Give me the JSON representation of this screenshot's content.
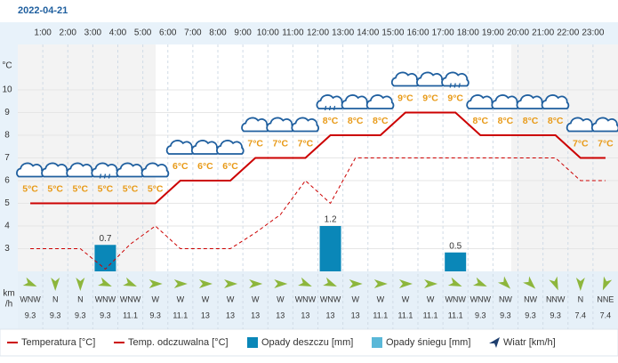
{
  "chart_data": {
    "type": "weather",
    "title": "2022-04-21",
    "hours": [
      null,
      "1:00",
      "2:00",
      "3:00",
      "4:00",
      "5:00",
      "6:00",
      "7:00",
      "8:00",
      "9:00",
      "10:00",
      "11:00",
      "12:00",
      "13:00",
      "14:00",
      "15:00",
      "16:00",
      "17:00",
      "18:00",
      "19:00",
      "20:00",
      "21:00",
      "22:00",
      "23:00"
    ],
    "y_unit": "°C",
    "ylim": [
      2,
      12
    ],
    "yticks": [
      3,
      4,
      5,
      6,
      7,
      8,
      9,
      10
    ],
    "y2lim": [
      0,
      6
    ],
    "grid": true,
    "series": [
      {
        "name": "Temperatura [°C]",
        "color": "#cc0000",
        "style": "solid",
        "values": [
          5,
          5,
          5,
          5,
          5,
          5,
          6,
          6,
          6,
          7,
          7,
          7,
          8,
          8,
          8,
          9,
          9,
          9,
          8,
          8,
          8,
          8,
          7,
          7
        ],
        "value_labels": [
          "5°C",
          "5°C",
          "5°C",
          "5°C",
          "5°C",
          "5°C",
          "6°C",
          "6°C",
          "6°C",
          "7°C",
          "7°C",
          "7°C",
          "8°C",
          "8°C",
          "8°C",
          "9°C",
          "9°C",
          "9°C",
          "8°C",
          "8°C",
          "8°C",
          "8°C",
          "7°C",
          "7°C"
        ]
      },
      {
        "name": "Temp. odczuwalna [°C]",
        "color": "#cc0000",
        "style": "dashed",
        "values": [
          3,
          3,
          3,
          2.1,
          3.2,
          4,
          3,
          3,
          3,
          3.7,
          4.5,
          6,
          5,
          7,
          7,
          7,
          7,
          7,
          7,
          7,
          7,
          7,
          6,
          6
        ]
      },
      {
        "name": "Opady deszczu [mm]",
        "color": "#0a87b8",
        "axis": "y2",
        "values": [
          0,
          0,
          0,
          0.7,
          0,
          0,
          0,
          0,
          0,
          0,
          0,
          0,
          1.2,
          0,
          0,
          0,
          0,
          0.5,
          0,
          0,
          0,
          0,
          0,
          0
        ]
      },
      {
        "name": "Opady śniegu [mm]",
        "color": "#5ab8d8",
        "axis": "y2",
        "values": [
          0,
          0,
          0,
          0,
          0,
          0,
          0,
          0,
          0,
          0,
          0,
          0,
          0,
          0,
          0,
          0,
          0,
          0,
          0,
          0,
          0,
          0,
          0,
          0
        ]
      }
    ],
    "wind": {
      "name": "Wiatr [km/h]",
      "unit_lines": [
        "km",
        "/h"
      ],
      "color": "#8db63c",
      "directions": [
        "WNW",
        "N",
        "N",
        "WNW",
        "WNW",
        "W",
        "W",
        "W",
        "W",
        "W",
        "W",
        "WNW",
        "WNW",
        "W",
        "W",
        "W",
        "W",
        "WNW",
        "WNW",
        "NW",
        "NW",
        "NNW",
        "N",
        "NNE"
      ],
      "speeds": [
        9.3,
        9.3,
        9.3,
        9.3,
        11.1,
        9.3,
        11.1,
        13,
        13,
        13,
        13,
        13,
        13,
        13,
        11.1,
        11.1,
        11.1,
        11.1,
        9.3,
        9.3,
        9.3,
        9.3,
        7.4,
        7.4
      ]
    }
  }
}
